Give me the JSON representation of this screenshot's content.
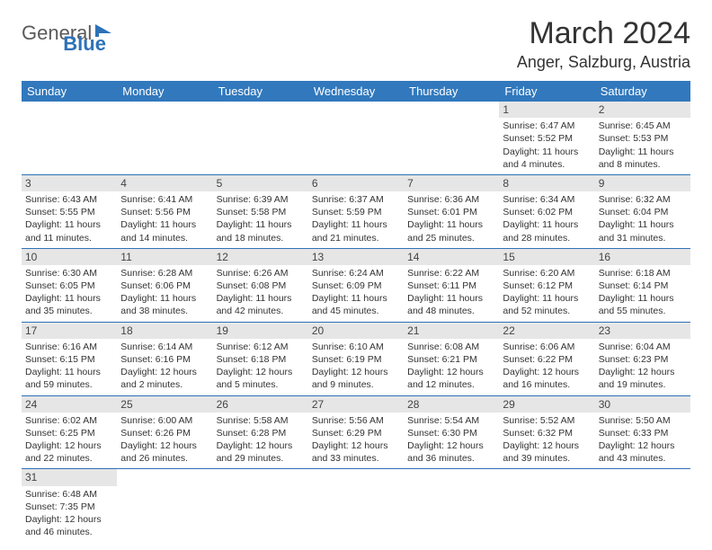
{
  "logo": {
    "general": "General",
    "blue": "Blue"
  },
  "header": {
    "title": "March 2024",
    "location": "Anger, Salzburg, Austria"
  },
  "styling": {
    "header_bg": "#3178bd",
    "header_fg": "#ffffff",
    "daynum_bg": "#e6e6e6",
    "row_divider": "#2d72b8",
    "title_fontsize": 34,
    "location_fontsize": 18,
    "dayheader_fontsize": 13,
    "cell_fontsize": 10.5
  },
  "day_headers": [
    "Sunday",
    "Monday",
    "Tuesday",
    "Wednesday",
    "Thursday",
    "Friday",
    "Saturday"
  ],
  "weeks": [
    [
      null,
      null,
      null,
      null,
      null,
      {
        "n": "1",
        "sr": "Sunrise: 6:47 AM",
        "ss": "Sunset: 5:52 PM",
        "d1": "Daylight: 11 hours",
        "d2": "and 4 minutes."
      },
      {
        "n": "2",
        "sr": "Sunrise: 6:45 AM",
        "ss": "Sunset: 5:53 PM",
        "d1": "Daylight: 11 hours",
        "d2": "and 8 minutes."
      }
    ],
    [
      {
        "n": "3",
        "sr": "Sunrise: 6:43 AM",
        "ss": "Sunset: 5:55 PM",
        "d1": "Daylight: 11 hours",
        "d2": "and 11 minutes."
      },
      {
        "n": "4",
        "sr": "Sunrise: 6:41 AM",
        "ss": "Sunset: 5:56 PM",
        "d1": "Daylight: 11 hours",
        "d2": "and 14 minutes."
      },
      {
        "n": "5",
        "sr": "Sunrise: 6:39 AM",
        "ss": "Sunset: 5:58 PM",
        "d1": "Daylight: 11 hours",
        "d2": "and 18 minutes."
      },
      {
        "n": "6",
        "sr": "Sunrise: 6:37 AM",
        "ss": "Sunset: 5:59 PM",
        "d1": "Daylight: 11 hours",
        "d2": "and 21 minutes."
      },
      {
        "n": "7",
        "sr": "Sunrise: 6:36 AM",
        "ss": "Sunset: 6:01 PM",
        "d1": "Daylight: 11 hours",
        "d2": "and 25 minutes."
      },
      {
        "n": "8",
        "sr": "Sunrise: 6:34 AM",
        "ss": "Sunset: 6:02 PM",
        "d1": "Daylight: 11 hours",
        "d2": "and 28 minutes."
      },
      {
        "n": "9",
        "sr": "Sunrise: 6:32 AM",
        "ss": "Sunset: 6:04 PM",
        "d1": "Daylight: 11 hours",
        "d2": "and 31 minutes."
      }
    ],
    [
      {
        "n": "10",
        "sr": "Sunrise: 6:30 AM",
        "ss": "Sunset: 6:05 PM",
        "d1": "Daylight: 11 hours",
        "d2": "and 35 minutes."
      },
      {
        "n": "11",
        "sr": "Sunrise: 6:28 AM",
        "ss": "Sunset: 6:06 PM",
        "d1": "Daylight: 11 hours",
        "d2": "and 38 minutes."
      },
      {
        "n": "12",
        "sr": "Sunrise: 6:26 AM",
        "ss": "Sunset: 6:08 PM",
        "d1": "Daylight: 11 hours",
        "d2": "and 42 minutes."
      },
      {
        "n": "13",
        "sr": "Sunrise: 6:24 AM",
        "ss": "Sunset: 6:09 PM",
        "d1": "Daylight: 11 hours",
        "d2": "and 45 minutes."
      },
      {
        "n": "14",
        "sr": "Sunrise: 6:22 AM",
        "ss": "Sunset: 6:11 PM",
        "d1": "Daylight: 11 hours",
        "d2": "and 48 minutes."
      },
      {
        "n": "15",
        "sr": "Sunrise: 6:20 AM",
        "ss": "Sunset: 6:12 PM",
        "d1": "Daylight: 11 hours",
        "d2": "and 52 minutes."
      },
      {
        "n": "16",
        "sr": "Sunrise: 6:18 AM",
        "ss": "Sunset: 6:14 PM",
        "d1": "Daylight: 11 hours",
        "d2": "and 55 minutes."
      }
    ],
    [
      {
        "n": "17",
        "sr": "Sunrise: 6:16 AM",
        "ss": "Sunset: 6:15 PM",
        "d1": "Daylight: 11 hours",
        "d2": "and 59 minutes."
      },
      {
        "n": "18",
        "sr": "Sunrise: 6:14 AM",
        "ss": "Sunset: 6:16 PM",
        "d1": "Daylight: 12 hours",
        "d2": "and 2 minutes."
      },
      {
        "n": "19",
        "sr": "Sunrise: 6:12 AM",
        "ss": "Sunset: 6:18 PM",
        "d1": "Daylight: 12 hours",
        "d2": "and 5 minutes."
      },
      {
        "n": "20",
        "sr": "Sunrise: 6:10 AM",
        "ss": "Sunset: 6:19 PM",
        "d1": "Daylight: 12 hours",
        "d2": "and 9 minutes."
      },
      {
        "n": "21",
        "sr": "Sunrise: 6:08 AM",
        "ss": "Sunset: 6:21 PM",
        "d1": "Daylight: 12 hours",
        "d2": "and 12 minutes."
      },
      {
        "n": "22",
        "sr": "Sunrise: 6:06 AM",
        "ss": "Sunset: 6:22 PM",
        "d1": "Daylight: 12 hours",
        "d2": "and 16 minutes."
      },
      {
        "n": "23",
        "sr": "Sunrise: 6:04 AM",
        "ss": "Sunset: 6:23 PM",
        "d1": "Daylight: 12 hours",
        "d2": "and 19 minutes."
      }
    ],
    [
      {
        "n": "24",
        "sr": "Sunrise: 6:02 AM",
        "ss": "Sunset: 6:25 PM",
        "d1": "Daylight: 12 hours",
        "d2": "and 22 minutes."
      },
      {
        "n": "25",
        "sr": "Sunrise: 6:00 AM",
        "ss": "Sunset: 6:26 PM",
        "d1": "Daylight: 12 hours",
        "d2": "and 26 minutes."
      },
      {
        "n": "26",
        "sr": "Sunrise: 5:58 AM",
        "ss": "Sunset: 6:28 PM",
        "d1": "Daylight: 12 hours",
        "d2": "and 29 minutes."
      },
      {
        "n": "27",
        "sr": "Sunrise: 5:56 AM",
        "ss": "Sunset: 6:29 PM",
        "d1": "Daylight: 12 hours",
        "d2": "and 33 minutes."
      },
      {
        "n": "28",
        "sr": "Sunrise: 5:54 AM",
        "ss": "Sunset: 6:30 PM",
        "d1": "Daylight: 12 hours",
        "d2": "and 36 minutes."
      },
      {
        "n": "29",
        "sr": "Sunrise: 5:52 AM",
        "ss": "Sunset: 6:32 PM",
        "d1": "Daylight: 12 hours",
        "d2": "and 39 minutes."
      },
      {
        "n": "30",
        "sr": "Sunrise: 5:50 AM",
        "ss": "Sunset: 6:33 PM",
        "d1": "Daylight: 12 hours",
        "d2": "and 43 minutes."
      }
    ],
    [
      {
        "n": "31",
        "sr": "Sunrise: 6:48 AM",
        "ss": "Sunset: 7:35 PM",
        "d1": "Daylight: 12 hours",
        "d2": "and 46 minutes."
      },
      null,
      null,
      null,
      null,
      null,
      null
    ]
  ]
}
